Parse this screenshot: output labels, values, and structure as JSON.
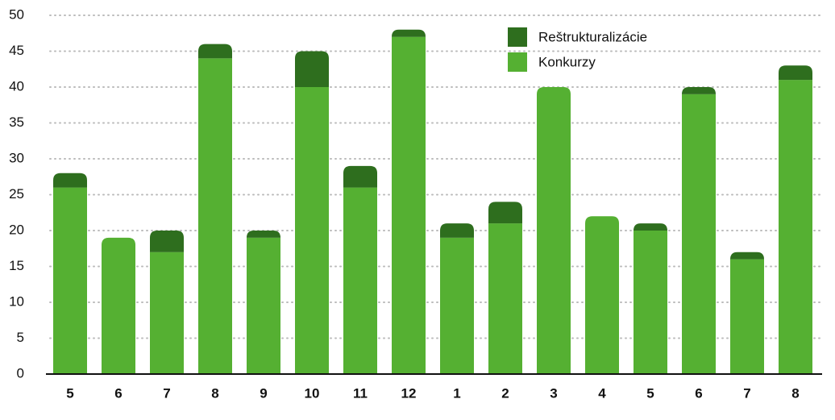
{
  "chart_data": {
    "type": "stacked_bar",
    "categories": [
      "5",
      "6",
      "7",
      "8",
      "9",
      "10",
      "11",
      "12",
      "1",
      "2",
      "3",
      "4",
      "5",
      "6",
      "7",
      "8"
    ],
    "series": [
      {
        "name": "Konkurzy",
        "color": "#55b032",
        "values": [
          26,
          19,
          17,
          44,
          19,
          40,
          26,
          47,
          19,
          21,
          40,
          22,
          20,
          39,
          16,
          41
        ]
      },
      {
        "name": "Reštrukturalizácie",
        "color": "#2e6e1e",
        "values": [
          2,
          0,
          3,
          2,
          1,
          5,
          3,
          1,
          2,
          3,
          0,
          0,
          1,
          1,
          1,
          2
        ]
      }
    ],
    "ylim": [
      0,
      50
    ],
    "yticks": [
      0,
      5,
      10,
      15,
      20,
      25,
      30,
      35,
      40,
      45,
      50
    ],
    "grid": true
  }
}
